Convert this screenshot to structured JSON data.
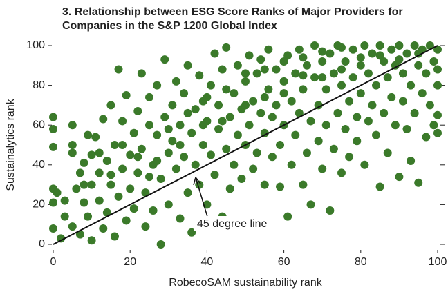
{
  "chart_data": {
    "type": "scatter",
    "title": [
      "3. Relationship between ESG Score Ranks of Major Providers for",
      "Companies in the S&P 1200 Global Index"
    ],
    "x_label": "RobecoSAM sustainability rank",
    "y_label": "Sustainalytics rank",
    "annotation": "45 degree line",
    "color": "#3b7a2a",
    "reference_line": {
      "x": [
        0,
        100
      ],
      "y": [
        0,
        100
      ]
    },
    "xlim": [
      0,
      100
    ],
    "ylim": [
      0,
      100
    ],
    "xticks": [
      0,
      20,
      40,
      60,
      80,
      100
    ],
    "yticks": [
      0,
      20,
      40,
      60,
      80,
      100
    ],
    "x": [
      0,
      0,
      0,
      0,
      0,
      0,
      1,
      2,
      3,
      5,
      5,
      5,
      5,
      6,
      7,
      7,
      8,
      8,
      9,
      9,
      10,
      10,
      10,
      11,
      12,
      12,
      13,
      13,
      14,
      14,
      15,
      15,
      16,
      16,
      17,
      17,
      18,
      18,
      19,
      19,
      20,
      20,
      21,
      21,
      22,
      22,
      23,
      23,
      24,
      24,
      25,
      25,
      26,
      26,
      27,
      27,
      28,
      28,
      29,
      29,
      30,
      30,
      31,
      31,
      32,
      32,
      33,
      33,
      34,
      34,
      35,
      35,
      36,
      36,
      37,
      37,
      38,
      38,
      39,
      39,
      40,
      40,
      41,
      41,
      42,
      42,
      43,
      43,
      44,
      44,
      45,
      45,
      46,
      46,
      47,
      47,
      48,
      48,
      49,
      49,
      50,
      50,
      51,
      51,
      52,
      52,
      53,
      53,
      54,
      54,
      55,
      55,
      56,
      56,
      57,
      57,
      58,
      58,
      59,
      59,
      60,
      60,
      61,
      61,
      62,
      62,
      63,
      63,
      64,
      64,
      65,
      65,
      66,
      66,
      67,
      67,
      68,
      68,
      69,
      69,
      70,
      70,
      71,
      71,
      72,
      72,
      73,
      73,
      74,
      74,
      75,
      75,
      76,
      76,
      77,
      77,
      78,
      78,
      79,
      79,
      80,
      80,
      81,
      81,
      82,
      82,
      83,
      83,
      84,
      84,
      85,
      85,
      86,
      86,
      87,
      87,
      88,
      88,
      89,
      89,
      90,
      90,
      91,
      91,
      92,
      92,
      93,
      93,
      94,
      94,
      95,
      95,
      96,
      96,
      97,
      97,
      98,
      98,
      99,
      99,
      100,
      100,
      100,
      100,
      100,
      22,
      27,
      33,
      39,
      44,
      50,
      55,
      60,
      65,
      70,
      75,
      80,
      85,
      90,
      95,
      15,
      18,
      12,
      8,
      3,
      25,
      30,
      35,
      40,
      45,
      50,
      55,
      60,
      65,
      70,
      75
    ],
    "values": [
      64,
      58,
      49,
      28,
      21,
      8,
      26,
      3,
      22,
      9,
      50,
      46,
      60,
      28,
      36,
      5,
      21,
      41,
      14,
      55,
      30,
      2,
      45,
      54,
      22,
      36,
      8,
      63,
      42,
      16,
      30,
      70,
      50,
      4,
      88,
      24,
      62,
      38,
      12,
      75,
      45,
      28,
      56,
      18,
      67,
      36,
      86,
      48,
      26,
      9,
      60,
      74,
      40,
      17,
      55,
      80,
      33,
      0,
      93,
      64,
      46,
      20,
      70,
      52,
      38,
      82,
      60,
      13,
      44,
      76,
      26,
      90,
      56,
      6,
      68,
      40,
      85,
      30,
      50,
      72,
      62,
      20,
      80,
      45,
      96,
      35,
      58,
      70,
      14,
      88,
      48,
      99,
      64,
      28,
      76,
      40,
      90,
      55,
      68,
      33,
      82,
      50,
      95,
      60,
      72,
      38,
      86,
      46,
      66,
      93,
      56,
      30,
      78,
      98,
      44,
      64,
      88,
      70,
      50,
      29,
      82,
      60,
      95,
      14,
      72,
      40,
      86,
      55,
      66,
      98,
      30,
      78,
      90,
      46,
      62,
      20,
      84,
      100,
      70,
      52,
      92,
      38,
      78,
      60,
      96,
      17,
      86,
      48,
      66,
      100,
      80,
      36,
      92,
      58,
      72,
      44,
      98,
      84,
      64,
      52,
      90,
      76,
      100,
      40,
      86,
      62,
      96,
      70,
      80,
      55,
      100,
      29,
      92,
      66,
      84,
      46,
      98,
      74,
      90,
      60,
      100,
      34,
      86,
      72,
      96,
      58,
      80,
      42,
      100,
      66,
      90,
      31,
      76,
      98,
      86,
      54,
      100,
      70,
      92,
      60,
      98,
      80,
      56,
      65,
      88,
      44,
      42,
      50,
      60,
      62,
      70,
      74,
      76,
      85,
      84,
      88,
      94,
      95,
      93,
      96,
      35,
      50,
      46,
      30,
      14,
      34,
      58,
      66,
      74,
      78,
      86,
      88,
      92,
      94,
      97,
      99
    ]
  }
}
